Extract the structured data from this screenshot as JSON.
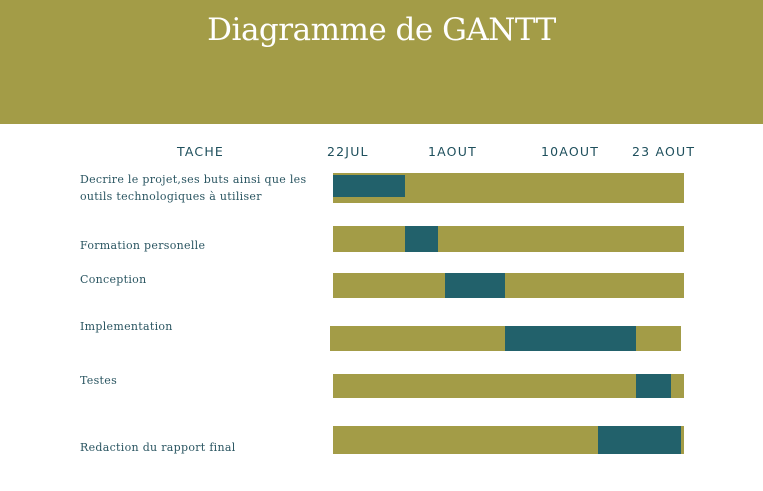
{
  "title": "Diagramme de GANTT",
  "columns": {
    "task": "TACHE",
    "dates": [
      "22JUL",
      "1AOUT",
      "10AOUT",
      "23 AOUT"
    ]
  },
  "chart_data": {
    "type": "bar",
    "title": "Diagramme de GANTT",
    "x_ticks": [
      "22JUL",
      "1AOUT",
      "10AOUT",
      "23 AOUT"
    ],
    "tasks": [
      {
        "name": "Decrire le projet,ses buts ainsi que les outils technologiques à utiliser",
        "start": "22JUL",
        "end": "28JUL"
      },
      {
        "name": "Formation personelle",
        "start": "28JUL",
        "end": "31JUL"
      },
      {
        "name": "Conception",
        "start": "1AOUT",
        "end": "5AOUT"
      },
      {
        "name": "Implementation",
        "start": "5AOUT",
        "end": "16AOUT"
      },
      {
        "name": "Testes",
        "start": "16AOUT",
        "end": "19AOUT"
      },
      {
        "name": "Redaction du rapport final",
        "start": "13AOUT",
        "end": "20AOUT"
      }
    ],
    "colors": {
      "track": "#a39c47",
      "bar": "#22616b",
      "header": "#a39c47"
    }
  }
}
